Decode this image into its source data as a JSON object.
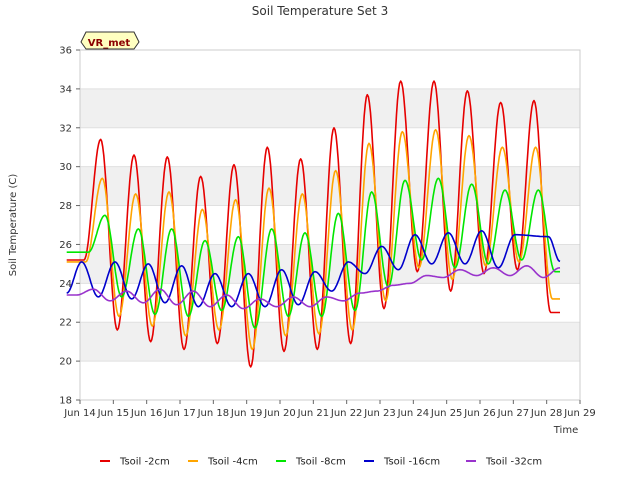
{
  "chart_data": {
    "type": "line",
    "title": "Soil Temperature Set 3",
    "xlabel": "Time",
    "ylabel": "Soil Temperature (C)",
    "badge": "VR_met",
    "xlim": [
      14,
      29
    ],
    "ylim": [
      18,
      36
    ],
    "x_ticks": [
      {
        "value": 14,
        "label": "Jun 14"
      },
      {
        "value": 15,
        "label": "Jun 15"
      },
      {
        "value": 16,
        "label": "Jun 16"
      },
      {
        "value": 17,
        "label": "Jun 17"
      },
      {
        "value": 18,
        "label": "Jun 18"
      },
      {
        "value": 19,
        "label": "Jun 19"
      },
      {
        "value": 20,
        "label": "Jun 20"
      },
      {
        "value": 21,
        "label": "Jun 21"
      },
      {
        "value": 22,
        "label": "Jun 22"
      },
      {
        "value": 23,
        "label": "Jun 23"
      },
      {
        "value": 24,
        "label": "Jun 24"
      },
      {
        "value": 25,
        "label": "Jun 25"
      },
      {
        "value": 26,
        "label": "Jun 26"
      },
      {
        "value": 27,
        "label": "Jun 27"
      },
      {
        "value": 28,
        "label": "Jun 28"
      },
      {
        "value": 29,
        "label": "Jun 29"
      }
    ],
    "y_ticks": [
      18,
      20,
      22,
      24,
      26,
      28,
      30,
      32,
      34,
      36
    ],
    "x_days": [
      13.6,
      14.0,
      15.0,
      16.0,
      17.0,
      18.0,
      19.0,
      20.0,
      21.0,
      22.0,
      23.0,
      24.0,
      25.0,
      26.0,
      27.0,
      28.0,
      28.4
    ],
    "legend_position": "bottom",
    "series": [
      {
        "name": "Tsoil -2cm",
        "color": "#e60000",
        "peak_time": 0.62,
        "maxima": [
          31.4,
          30.6,
          30.5,
          29.5,
          30.1,
          31.0,
          30.4,
          32.0,
          33.7,
          34.4,
          34.4,
          33.9,
          33.3,
          33.4
        ],
        "minima": [
          25.2,
          21.6,
          21.0,
          20.6,
          20.9,
          19.7,
          20.5,
          20.6,
          20.9,
          22.7,
          24.6,
          23.6,
          24.5,
          24.7,
          22.5
        ]
      },
      {
        "name": "Tsoil -4cm",
        "color": "#ffa500",
        "peak_time": 0.67,
        "maxima": [
          29.4,
          28.6,
          28.7,
          27.8,
          28.3,
          28.9,
          28.6,
          29.8,
          31.2,
          31.8,
          31.9,
          31.6,
          31.0,
          31.0
        ],
        "minima": [
          25.1,
          22.3,
          21.8,
          21.3,
          21.6,
          20.6,
          21.3,
          21.4,
          21.6,
          23.1,
          24.8,
          24.2,
          24.9,
          25.1,
          23.2
        ]
      },
      {
        "name": "Tsoil -8cm",
        "color": "#00e600",
        "peak_time": 0.75,
        "maxima": [
          27.5,
          26.8,
          26.8,
          26.2,
          26.4,
          26.8,
          26.6,
          27.6,
          28.7,
          29.3,
          29.4,
          29.1,
          28.8,
          28.8
        ],
        "minima": [
          25.6,
          23.3,
          22.4,
          22.3,
          22.6,
          21.7,
          22.3,
          22.3,
          22.6,
          23.8,
          25.2,
          24.8,
          25.0,
          25.2,
          24.6
        ]
      },
      {
        "name": "Tsoil -16cm",
        "color": "#0000cc",
        "peak_time": 0.05,
        "maxima": [
          25.1,
          25.1,
          25.0,
          24.9,
          24.5,
          24.5,
          24.7,
          24.6,
          25.1,
          25.9,
          26.5,
          26.6,
          26.7,
          26.5,
          26.4
        ],
        "minima": [
          23.5,
          23.3,
          23.2,
          23.0,
          22.8,
          22.8,
          22.8,
          22.9,
          23.6,
          24.5,
          24.7,
          25.0,
          25.0,
          24.8
        ]
      },
      {
        "name": "Tsoil -32cm",
        "color": "#9933cc",
        "peak_time": 0.4,
        "maxima": [
          23.7,
          23.6,
          23.7,
          23.6,
          23.4,
          23.2,
          23.3,
          23.3,
          23.5,
          23.9,
          24.4,
          24.7,
          24.8,
          24.9,
          24.8
        ],
        "minima": [
          23.4,
          23.1,
          23.0,
          22.9,
          22.8,
          22.7,
          22.8,
          22.8,
          23.1,
          23.6,
          24.0,
          24.3,
          24.4,
          24.4,
          24.3
        ]
      }
    ]
  }
}
